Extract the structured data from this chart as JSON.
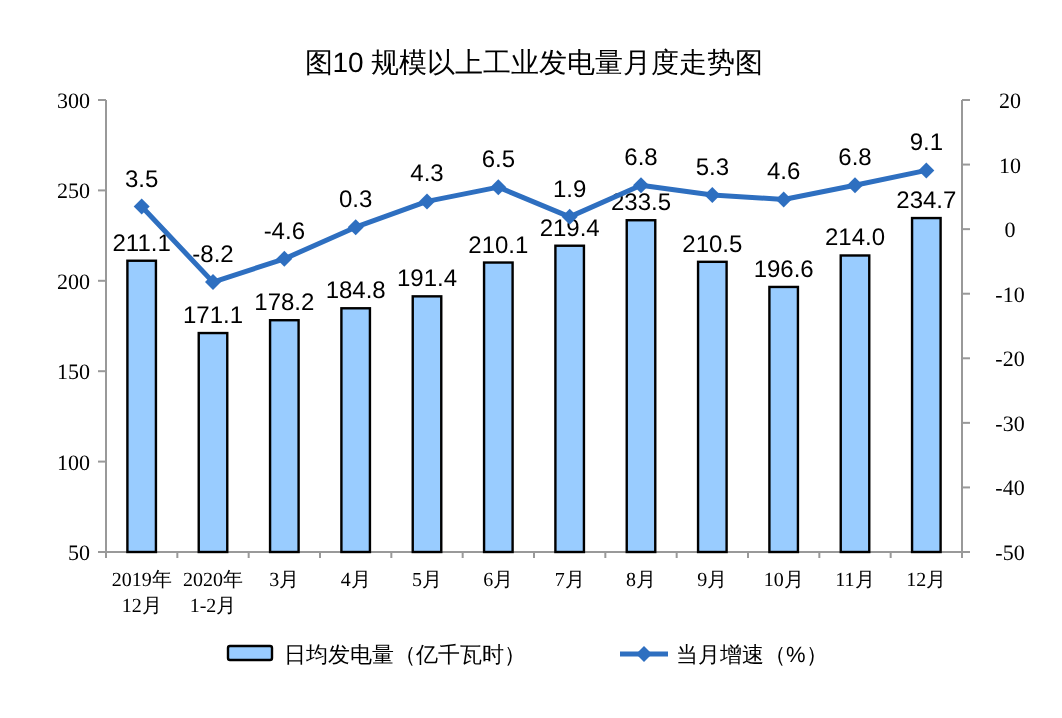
{
  "chart_data": {
    "type": "bar",
    "title": "图10  规模以上工业发电量月度走势图",
    "categories": [
      "2019年\n12月",
      "2020年\n1-2月",
      "3月",
      "4月",
      "5月",
      "6月",
      "7月",
      "8月",
      "9月",
      "10月",
      "11月",
      "12月"
    ],
    "series": [
      {
        "name": "日均发电量（亿千瓦时）",
        "type": "bar",
        "color": "#99ccff",
        "values": [
          211.1,
          171.1,
          178.2,
          184.8,
          191.4,
          210.1,
          219.4,
          233.5,
          210.5,
          196.6,
          214.0,
          234.7
        ],
        "value_labels": [
          "211.1",
          "171.1",
          "178.2",
          "184.8",
          "191.4",
          "210.1",
          "219.4",
          "233.5",
          "210.5",
          "196.6",
          "214.0",
          "234.7"
        ]
      },
      {
        "name": "当月增速（%）",
        "type": "line",
        "axis": "y2",
        "color": "#2e6fc0",
        "marker": "diamond",
        "values": [
          3.5,
          -8.2,
          -4.6,
          0.3,
          4.3,
          6.5,
          1.9,
          6.8,
          5.3,
          4.6,
          6.8,
          9.1
        ],
        "value_labels": [
          "3.5",
          "-8.2",
          "-4.6",
          "0.3",
          "4.3",
          "6.5",
          "1.9",
          "6.8",
          "5.3",
          "4.6",
          "6.8",
          "9.1"
        ]
      }
    ],
    "ylim": [
      50,
      300
    ],
    "yticks": [
      50,
      100,
      150,
      200,
      250,
      300
    ],
    "y2lim": [
      -50,
      20
    ],
    "y2ticks": [
      -50,
      -40,
      -30,
      -20,
      -10,
      0,
      10,
      20
    ],
    "grid": false,
    "legend": "bottom"
  }
}
